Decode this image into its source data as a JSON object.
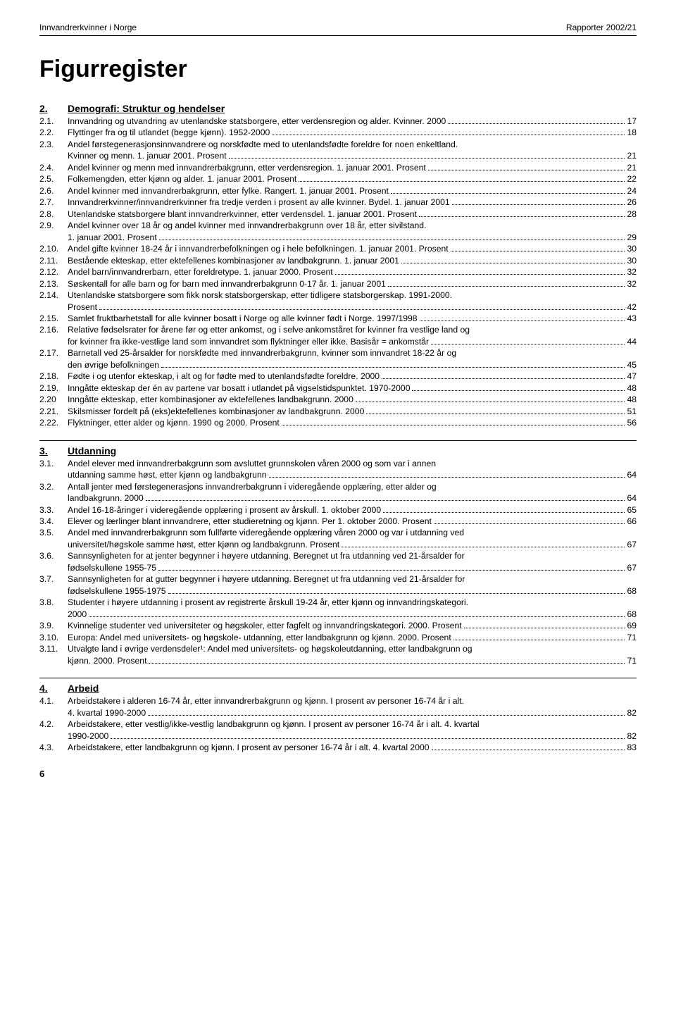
{
  "header": {
    "left": "Innvandrerkvinner i Norge",
    "right": "Rapporter 2002/21"
  },
  "title": "Figurregister",
  "sections": [
    {
      "num": "2.",
      "label": "Demografi: Struktur og hendelser",
      "entries": [
        {
          "num": "2.1.",
          "lines": [
            "Innvandring og utvandring av utenlandske statsborgere, etter verdensregion og alder. Kvinner. 2000"
          ],
          "page": "17"
        },
        {
          "num": "2.2.",
          "lines": [
            "Flyttinger fra og til utlandet (begge kjønn). 1952-2000"
          ],
          "page": "18"
        },
        {
          "num": "2.3.",
          "lines": [
            "Andel førstegenerasjonsinnvandrere og norskfødte med to utenlandsfødte foreldre for noen enkeltland.",
            "Kvinner og menn. 1. januar 2001. Prosent"
          ],
          "page": "21"
        },
        {
          "num": "2.4.",
          "lines": [
            "Andel kvinner og menn med innvandrerbakgrunn, etter verdensregion. 1. januar 2001. Prosent"
          ],
          "page": "21"
        },
        {
          "num": "2.5.",
          "lines": [
            "Folkemengden, etter kjønn og alder. 1. januar 2001. Prosent"
          ],
          "page": "22"
        },
        {
          "num": "2.6.",
          "lines": [
            "Andel kvinner med innvandrerbakgrunn, etter fylke. Rangert. 1. januar 2001. Prosent"
          ],
          "page": "24"
        },
        {
          "num": "2.7.",
          "lines": [
            "Innvandrerkvinner/innvandrerkvinner fra tredje verden i prosent av alle kvinner. Bydel. 1. januar 2001"
          ],
          "page": "26"
        },
        {
          "num": "2.8.",
          "lines": [
            "Utenlandske statsborgere blant innvandrerkvinner, etter verdensdel. 1. januar 2001. Prosent"
          ],
          "page": "28"
        },
        {
          "num": "2.9.",
          "lines": [
            "Andel kvinner over 18 år og andel kvinner med innvandrerbakgrunn over 18 år, etter sivilstand.",
            "1. januar 2001. Prosent"
          ],
          "page": "29"
        },
        {
          "num": "2.10.",
          "lines": [
            "Andel gifte kvinner 18-24 år i innvandrerbefolkningen og i hele befolkningen. 1. januar 2001. Prosent"
          ],
          "page": "30"
        },
        {
          "num": "2.11.",
          "lines": [
            "Bestående ekteskap, etter ektefellenes kombinasjoner av landbakgrunn. 1. januar 2001"
          ],
          "page": "30"
        },
        {
          "num": "2.12.",
          "lines": [
            "Andel barn/innvandrerbarn, etter foreldretype. 1. januar 2000. Prosent"
          ],
          "page": "32"
        },
        {
          "num": "2.13.",
          "lines": [
            "Søskentall for alle barn og for barn med innvandrerbakgrunn 0-17 år. 1. januar 2001"
          ],
          "page": "32"
        },
        {
          "num": "2.14.",
          "lines": [
            "Utenlandske statsborgere som fikk norsk statsborgerskap, etter tidligere statsborgerskap. 1991-2000.",
            "Prosent"
          ],
          "page": "42"
        },
        {
          "num": "2.15.",
          "lines": [
            "Samlet fruktbarhetstall for alle kvinner bosatt i Norge og alle kvinner født i Norge. 1997/1998"
          ],
          "page": "43"
        },
        {
          "num": "2.16.",
          "lines": [
            "Relative fødselsrater for årene før og etter ankomst, og i selve ankomståret for kvinner fra vestlige land og",
            "for kvinner fra ikke-vestlige land som innvandret som flyktninger eller ikke. Basisår = ankomstår"
          ],
          "page": "44"
        },
        {
          "num": "2.17.",
          "lines": [
            "Barnetall ved 25-årsalder for norskfødte med innvandrerbakgrunn, kvinner som innvandret 18-22 år og",
            "den øvrige befolkningen"
          ],
          "page": "45"
        },
        {
          "num": "2.18.",
          "lines": [
            "Fødte i og utenfor ekteskap, i alt og for fødte med to utenlandsfødte foreldre. 2000"
          ],
          "page": "47"
        },
        {
          "num": "2.19.",
          "lines": [
            "Inngåtte ekteskap der én av partene var bosatt i utlandet på vigselstidspunktet. 1970-2000"
          ],
          "page": "48"
        },
        {
          "num": "2.20",
          "lines": [
            "Inngåtte ekteskap, etter kombinasjoner av ektefellenes landbakgrunn. 2000"
          ],
          "page": "48"
        },
        {
          "num": "2.21.",
          "lines": [
            "Skilsmisser fordelt på (eks)ektefellenes kombinasjoner av landbakgrunn. 2000"
          ],
          "page": "51"
        },
        {
          "num": "2.22.",
          "lines": [
            "Flyktninger, etter alder og kjønn. 1990 og 2000. Prosent"
          ],
          "page": "56"
        }
      ]
    },
    {
      "num": "3.",
      "label": "Utdanning",
      "entries": [
        {
          "num": "3.1.",
          "lines": [
            "Andel elever med innvandrerbakgrunn som avsluttet grunnskolen våren 2000 og som var i annen",
            "utdanning samme høst, etter kjønn og landbakgrunn"
          ],
          "page": "64"
        },
        {
          "num": "3.2.",
          "lines": [
            "Antall jenter med førstegenerasjons innvandrerbakgrunn i videregående opplæring, etter alder og",
            "landbakgrunn. 2000"
          ],
          "page": "64"
        },
        {
          "num": "3.3.",
          "lines": [
            "Andel 16-18-åringer i videregående opplæring i prosent av årskull. 1. oktober 2000"
          ],
          "page": "65"
        },
        {
          "num": "3.4.",
          "lines": [
            "Elever og lærlinger blant innvandrere, etter studieretning og kjønn. Per 1. oktober 2000. Prosent"
          ],
          "page": "66"
        },
        {
          "num": "3.5.",
          "lines": [
            "Andel med innvandrerbakgrunn som fullførte videregående opplæring våren 2000 og var i utdanning ved",
            "universitet/høgskole samme høst, etter kjønn og landbakgrunn. Prosent"
          ],
          "page": "67"
        },
        {
          "num": "3.6.",
          "lines": [
            "Sannsynligheten for at jenter begynner i høyere utdanning. Beregnet ut fra utdanning ved 21-årsalder for",
            "fødselskullene 1955-75"
          ],
          "page": "67"
        },
        {
          "num": "3.7.",
          "lines": [
            "Sannsynligheten for at gutter begynner i høyere utdanning. Beregnet ut fra utdanning ved 21-årsalder for",
            "fødselskullene 1955-1975"
          ],
          "page": "68"
        },
        {
          "num": "3.8.",
          "lines": [
            "Studenter i høyere utdanning i prosent av registrerte årskull 19-24 år, etter kjønn og innvandringskategori.",
            "2000"
          ],
          "page": "68"
        },
        {
          "num": "3.9.",
          "lines": [
            "Kvinnelige studenter ved universiteter og høgskoler, etter fagfelt og innvandringskategori. 2000. Prosent"
          ],
          "page": "69"
        },
        {
          "num": "3.10.",
          "lines": [
            "Europa: Andel med universitets- og høgskole- utdanning, etter landbakgrunn og kjønn. 2000. Prosent"
          ],
          "page": "71"
        },
        {
          "num": "3.11.",
          "lines": [
            "Utvalgte land i øvrige verdensdeler¹: Andel med universitets- og høgskoleutdanning, etter landbakgrunn og",
            "kjønn. 2000. Prosent"
          ],
          "page": "71"
        }
      ]
    },
    {
      "num": "4.",
      "label": "Arbeid",
      "entries": [
        {
          "num": "4.1.",
          "lines": [
            "Arbeidstakere i alderen 16-74 år, etter innvandrerbakgrunn og kjønn. I prosent av personer 16-74 år i alt.",
            "4. kvartal 1990-2000"
          ],
          "page": "82"
        },
        {
          "num": "4.2.",
          "lines": [
            "Arbeidstakere, etter vestlig/ikke-vestlig landbakgrunn og kjønn. I prosent av personer 16-74 år i alt. 4. kvartal",
            "1990-2000"
          ],
          "page": "82"
        },
        {
          "num": "4.3.",
          "lines": [
            "Arbeidstakere, etter landbakgrunn og kjønn. I prosent av personer 16-74 år i alt. 4. kvartal 2000"
          ],
          "page": "83"
        }
      ]
    }
  ],
  "footer_page": "6"
}
